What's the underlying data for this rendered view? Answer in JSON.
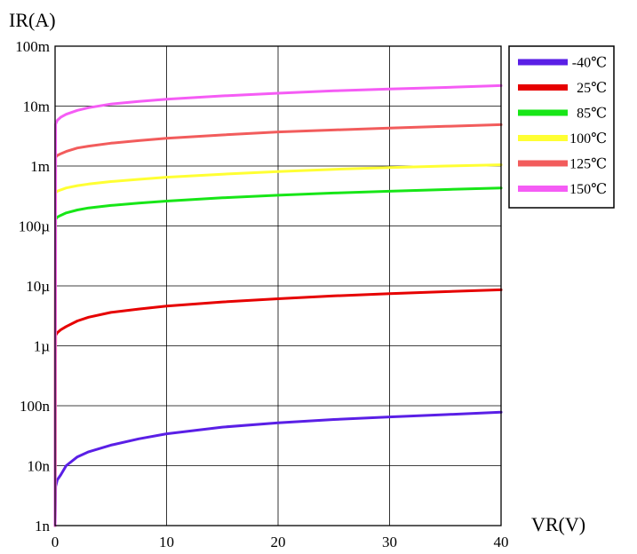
{
  "chart_data": {
    "type": "line",
    "ylabel": "IR(A)",
    "xlabel": "VR(V)",
    "xlim": [
      0,
      40
    ],
    "ylim": [
      1e-09,
      0.1
    ],
    "y_scale": "log",
    "grid": true,
    "legend_position": "top-right",
    "x_ticks": [
      {
        "value": 0,
        "label": "0"
      },
      {
        "value": 10,
        "label": "10"
      },
      {
        "value": 20,
        "label": "20"
      },
      {
        "value": 30,
        "label": "30"
      },
      {
        "value": 40,
        "label": "40"
      }
    ],
    "y_ticks": [
      {
        "value": 1e-09,
        "label": "1n"
      },
      {
        "value": 1e-08,
        "label": "10n"
      },
      {
        "value": 1e-07,
        "label": "100n"
      },
      {
        "value": 1e-06,
        "label": "1µ"
      },
      {
        "value": 1e-05,
        "label": "10µ"
      },
      {
        "value": 0.0001,
        "label": "100µ"
      },
      {
        "value": 0.001,
        "label": "1m"
      },
      {
        "value": 0.01,
        "label": "10m"
      },
      {
        "value": 0.1,
        "label": "100m"
      }
    ],
    "series": [
      {
        "name": "-40℃",
        "color": "#5a1fe6",
        "x": [
          0,
          0.05,
          0.2,
          0.5,
          1,
          2,
          3,
          5,
          7.5,
          10,
          15,
          20,
          25,
          30,
          35,
          40
        ],
        "y": [
          1e-09,
          4.5e-09,
          5.8e-09,
          7e-09,
          1e-08,
          1.4e-08,
          1.7e-08,
          2.2e-08,
          2.8e-08,
          3.4e-08,
          4.4e-08,
          5.2e-08,
          5.9e-08,
          6.5e-08,
          7.1e-08,
          7.8e-08
        ]
      },
      {
        "name": "25℃",
        "color": "#e60000",
        "x": [
          0,
          0.05,
          0.2,
          0.5,
          1,
          2,
          3,
          5,
          7.5,
          10,
          15,
          20,
          25,
          30,
          35,
          40
        ],
        "y": [
          1e-09,
          1.5e-06,
          1.65e-06,
          1.85e-06,
          2.1e-06,
          2.6e-06,
          3e-06,
          3.6e-06,
          4.1e-06,
          4.6e-06,
          5.4e-06,
          6.1e-06,
          6.8e-06,
          7.4e-06,
          8e-06,
          8.6e-06
        ]
      },
      {
        "name": "85℃",
        "color": "#17e617",
        "x": [
          0,
          0.05,
          0.2,
          0.5,
          1,
          2,
          3,
          5,
          7.5,
          10,
          15,
          20,
          25,
          30,
          35,
          40
        ],
        "y": [
          1e-09,
          0.00013,
          0.00014,
          0.00015,
          0.000165,
          0.000185,
          0.0002,
          0.00022,
          0.00024,
          0.00026,
          0.000295,
          0.000325,
          0.000355,
          0.00038,
          0.000405,
          0.00043
        ]
      },
      {
        "name": "100℃",
        "color": "#ffff33",
        "x": [
          0,
          0.05,
          0.2,
          0.5,
          1,
          2,
          3,
          5,
          7.5,
          10,
          15,
          20,
          25,
          30,
          35,
          40
        ],
        "y": [
          1e-09,
          0.00036,
          0.00038,
          0.0004,
          0.00043,
          0.00047,
          0.0005,
          0.00055,
          0.0006,
          0.00065,
          0.00073,
          0.00081,
          0.00088,
          0.00094,
          0.001,
          0.00105
        ]
      },
      {
        "name": "125℃",
        "color": "#f25c5c",
        "x": [
          0,
          0.05,
          0.2,
          0.5,
          1,
          2,
          3,
          5,
          7.5,
          10,
          15,
          20,
          25,
          30,
          35,
          40
        ],
        "y": [
          1e-09,
          0.0014,
          0.0015,
          0.0016,
          0.00175,
          0.002,
          0.00215,
          0.0024,
          0.00265,
          0.0029,
          0.0033,
          0.0037,
          0.004,
          0.0043,
          0.0046,
          0.0049
        ]
      },
      {
        "name": "150℃",
        "color": "#f55cf5",
        "x": [
          0,
          0.05,
          0.2,
          0.5,
          1,
          2,
          3,
          5,
          7.5,
          10,
          15,
          20,
          25,
          30,
          35,
          40
        ],
        "y": [
          1e-09,
          0.005,
          0.0058,
          0.0065,
          0.0073,
          0.0085,
          0.0094,
          0.0108,
          0.012,
          0.013,
          0.0148,
          0.0164,
          0.018,
          0.0193,
          0.0205,
          0.022
        ]
      }
    ]
  }
}
